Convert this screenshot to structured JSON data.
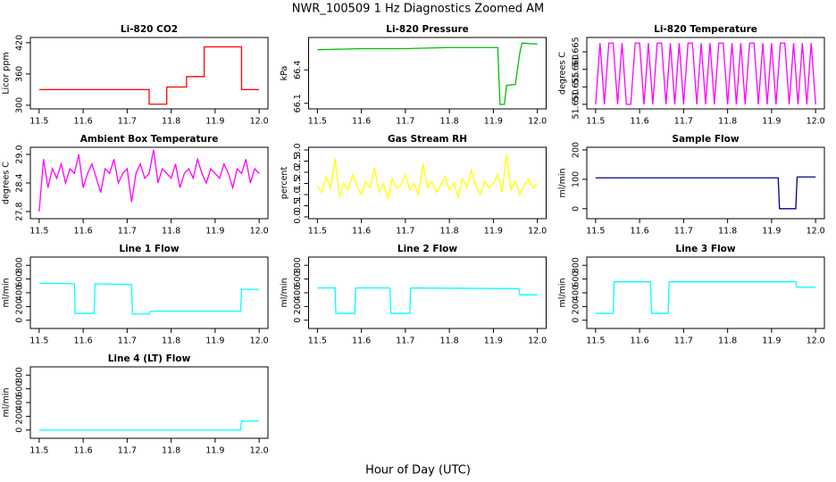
{
  "title": "NWR_100509  1 Hz Diagnostics Zoomed AM",
  "xlabel": "Hour of Day (UTC)",
  "chart_data": [
    {
      "type": "line",
      "title": "Li-820 CO2",
      "ylabel": "Licor ppm",
      "color": "#ff0000",
      "x": [
        11.5,
        11.75,
        11.75,
        11.79,
        11.79,
        11.835,
        11.835,
        11.875,
        11.875,
        11.96,
        11.96,
        12.0
      ],
      "values": [
        330,
        330,
        302,
        302,
        335,
        335,
        355,
        355,
        412,
        412,
        330,
        330
      ],
      "xlim": [
        11.48,
        12.02
      ],
      "xticks": [
        11.5,
        11.6,
        11.7,
        11.8,
        11.9,
        {
          "value": 12,
          "label": "12.0"
        }
      ],
      "ylim": [
        293,
        430
      ],
      "yticks": [
        300,
        360,
        420
      ]
    },
    {
      "type": "line",
      "title": "Li-820 Pressure",
      "ylabel": "kPa",
      "color": "#00c000",
      "x": [
        11.5,
        11.6,
        11.7,
        11.8,
        11.91,
        11.915,
        11.925,
        11.93,
        11.95,
        11.96,
        11.965,
        12.0
      ],
      "values": [
        66.58,
        66.59,
        66.59,
        66.6,
        66.6,
        66.09,
        66.09,
        66.26,
        66.27,
        66.55,
        66.64,
        66.63
      ],
      "xlim": [
        11.48,
        12.02
      ],
      "xticks": [
        11.5,
        11.6,
        11.7,
        11.8,
        11.9,
        {
          "value": 12,
          "label": "12.0"
        }
      ],
      "ylim": [
        66.05,
        66.69
      ],
      "yticks": [
        66.1,
        66.4
      ]
    },
    {
      "type": "line",
      "title": "Li-820 Temperature",
      "ylabel": "degrees C",
      "color": "#ff00ff",
      "x": [
        11.5,
        11.51,
        11.52,
        11.53,
        11.54,
        11.55,
        11.56,
        11.57,
        11.58,
        11.59,
        11.6,
        11.61,
        11.62,
        11.63,
        11.64,
        11.65,
        11.66,
        11.67,
        11.68,
        11.69,
        11.7,
        11.71,
        11.72,
        11.73,
        11.74,
        11.75,
        11.76,
        11.77,
        11.78,
        11.79,
        11.8,
        11.81,
        11.82,
        11.83,
        11.84,
        11.85,
        11.86,
        11.87,
        11.88,
        11.89,
        11.9,
        11.91,
        11.92,
        11.93,
        11.94,
        11.95,
        11.96,
        11.97,
        11.98,
        11.99,
        12.0
      ],
      "values": [
        51.65,
        51.6675,
        51.65,
        51.6675,
        51.6675,
        51.65,
        51.6675,
        51.65,
        51.65,
        51.6675,
        51.6675,
        51.65,
        51.6675,
        51.65,
        51.6675,
        51.6675,
        51.65,
        51.6675,
        51.65,
        51.6675,
        51.65,
        51.6675,
        51.6675,
        51.65,
        51.6675,
        51.65,
        51.6675,
        51.65,
        51.6675,
        51.6675,
        51.65,
        51.6675,
        51.65,
        51.6675,
        51.65,
        51.6675,
        51.6675,
        51.65,
        51.6675,
        51.65,
        51.6675,
        51.65,
        51.6675,
        51.6675,
        51.65,
        51.6675,
        51.65,
        51.6675,
        51.65,
        51.6675,
        51.65
      ],
      "xlim": [
        11.48,
        12.02
      ],
      "xticks": [
        11.5,
        11.6,
        11.7,
        11.8,
        11.9,
        {
          "value": 12,
          "label": "12.0"
        }
      ],
      "ylim": [
        51.6487,
        51.6691
      ],
      "yticks": [
        {
          "value": 51.65,
          "label": "51.650"
        },
        51.655,
        {
          "value": 51.66,
          "label": "51.660"
        },
        51.665
      ]
    },
    {
      "type": "line",
      "title": "Ambient Box Temperature",
      "ylabel": "degrees C",
      "color": "#ff00ff",
      "x": [
        11.5,
        11.51,
        11.52,
        11.53,
        11.54,
        11.55,
        11.56,
        11.57,
        11.58,
        11.59,
        11.6,
        11.61,
        11.62,
        11.63,
        11.64,
        11.65,
        11.66,
        11.67,
        11.68,
        11.69,
        11.7,
        11.71,
        11.72,
        11.73,
        11.74,
        11.75,
        11.76,
        11.77,
        11.78,
        11.79,
        11.8,
        11.81,
        11.82,
        11.83,
        11.84,
        11.85,
        11.86,
        11.87,
        11.88,
        11.89,
        11.9,
        11.91,
        11.92,
        11.93,
        11.94,
        11.95,
        11.96,
        11.97,
        11.98,
        11.99,
        12.0
      ],
      "values": [
        27.8,
        28.9,
        28.3,
        28.7,
        28.5,
        28.8,
        28.4,
        28.7,
        28.6,
        29.0,
        28.3,
        28.6,
        28.8,
        28.5,
        28.2,
        28.7,
        28.6,
        28.9,
        28.4,
        28.6,
        28.7,
        28.0,
        28.6,
        28.8,
        28.5,
        28.6,
        29.1,
        28.4,
        28.7,
        28.6,
        28.5,
        28.8,
        28.3,
        28.6,
        28.7,
        28.5,
        28.9,
        28.6,
        28.4,
        28.7,
        28.6,
        28.5,
        28.8,
        28.6,
        28.3,
        28.7,
        28.6,
        28.9,
        28.4,
        28.7,
        28.6
      ],
      "xlim": [
        11.48,
        12.02
      ],
      "xticks": [
        11.5,
        11.6,
        11.7,
        11.8,
        11.9,
        {
          "value": 12,
          "label": "12.0"
        }
      ],
      "ylim": [
        27.65,
        29.15
      ],
      "yticks": [
        27.8,
        28.4,
        {
          "value": 29,
          "label": "29.0"
        }
      ]
    },
    {
      "type": "line",
      "title": "Gas Stream RH",
      "ylabel": "percent",
      "color": "#ffff00",
      "x": [
        11.5,
        11.51,
        11.52,
        11.53,
        11.54,
        11.55,
        11.56,
        11.57,
        11.58,
        11.59,
        11.6,
        11.61,
        11.62,
        11.63,
        11.64,
        11.65,
        11.66,
        11.67,
        11.68,
        11.69,
        11.7,
        11.71,
        11.72,
        11.73,
        11.74,
        11.75,
        11.76,
        11.77,
        11.78,
        11.79,
        11.8,
        11.81,
        11.82,
        11.83,
        11.84,
        11.85,
        11.86,
        11.87,
        11.88,
        11.89,
        11.9,
        11.91,
        11.92,
        11.93,
        11.94,
        11.95,
        11.96,
        11.97,
        11.98,
        11.99,
        12.0
      ],
      "values": [
        1.4,
        1.1,
        1.8,
        1.3,
        2.6,
        0.9,
        1.5,
        1.2,
        1.9,
        1.4,
        1.0,
        1.6,
        1.3,
        2.2,
        1.1,
        1.5,
        0.8,
        1.7,
        1.3,
        1.4,
        1.9,
        1.2,
        1.5,
        1.0,
        2.4,
        1.3,
        1.6,
        1.1,
        1.4,
        1.8,
        1.2,
        1.5,
        0.9,
        1.7,
        1.3,
        2.1,
        1.4,
        1.0,
        1.6,
        1.3,
        1.5,
        1.9,
        1.1,
        2.8,
        1.2,
        1.6,
        1.0,
        1.4,
        1.7,
        1.3,
        1.5
      ],
      "xlim": [
        11.48,
        12.02
      ],
      "xticks": [
        11.5,
        11.6,
        11.7,
        11.8,
        11.9,
        {
          "value": 12,
          "label": "12.0"
        }
      ],
      "ylim": [
        -0.08,
        3.12
      ],
      "yticks": [
        {
          "value": 0,
          "label": "0.0"
        },
        0.5,
        {
          "value": 1,
          "label": "1.0"
        },
        1.5,
        {
          "value": 2,
          "label": "2.0"
        },
        2.5,
        {
          "value": 3,
          "label": "3.0"
        }
      ]
    },
    {
      "type": "line",
      "title": "Sample Flow",
      "ylabel": "ml/min",
      "color": "#00008b",
      "x": [
        11.5,
        11.915,
        11.918,
        11.955,
        11.958,
        12.0
      ],
      "values": [
        105,
        105,
        0,
        0,
        108,
        108
      ],
      "xlim": [
        11.48,
        12.02
      ],
      "xticks": [
        11.5,
        11.6,
        11.7,
        11.8,
        11.9,
        {
          "value": 12,
          "label": "12.0"
        }
      ],
      "ylim": [
        -34,
        209
      ],
      "yticks": [
        0,
        100,
        200
      ]
    },
    {
      "type": "line",
      "title": "Line 1 Flow",
      "ylabel": "ml/min",
      "color": "#00ffff",
      "x": [
        11.5,
        11.58,
        11.582,
        11.625,
        11.627,
        11.71,
        11.712,
        11.75,
        11.752,
        11.958,
        11.96,
        12.0
      ],
      "values": [
        540,
        530,
        100,
        100,
        530,
        520,
        90,
        90,
        130,
        130,
        450,
        450
      ],
      "xlim": [
        11.48,
        12.02
      ],
      "xticks": [
        11.5,
        11.6,
        11.7,
        11.8,
        11.9,
        {
          "value": 12,
          "label": "12.0"
        }
      ],
      "ylim": [
        -120,
        920
      ],
      "yticks": [
        0,
        200,
        400,
        600,
        800
      ]
    },
    {
      "type": "line",
      "title": "Line 2 Flow",
      "ylabel": "ml/min",
      "color": "#00ffff",
      "x": [
        11.5,
        11.54,
        11.542,
        11.585,
        11.587,
        11.665,
        11.667,
        11.71,
        11.712,
        11.958,
        11.96,
        12.0
      ],
      "values": [
        470,
        470,
        100,
        100,
        470,
        470,
        100,
        100,
        470,
        460,
        370,
        370
      ],
      "xlim": [
        11.48,
        12.02
      ],
      "xticks": [
        11.5,
        11.6,
        11.7,
        11.8,
        11.9,
        {
          "value": 12,
          "label": "12.0"
        }
      ],
      "ylim": [
        -120,
        920
      ],
      "yticks": [
        0,
        200,
        400,
        600,
        800
      ]
    },
    {
      "type": "line",
      "title": "Line 3 Flow",
      "ylabel": "ml/min",
      "color": "#00ffff",
      "x": [
        11.5,
        11.54,
        11.542,
        11.625,
        11.627,
        11.665,
        11.667,
        11.955,
        11.957,
        12.0
      ],
      "values": [
        100,
        100,
        560,
        560,
        100,
        100,
        560,
        560,
        480,
        480
      ],
      "xlim": [
        11.48,
        12.02
      ],
      "xticks": [
        11.5,
        11.6,
        11.7,
        11.8,
        11.9,
        {
          "value": 12,
          "label": "12.0"
        }
      ],
      "ylim": [
        -120,
        920
      ],
      "yticks": [
        0,
        200,
        400,
        600,
        800
      ]
    },
    {
      "type": "line",
      "title": "Line 4 (LT) Flow",
      "ylabel": "ml/min",
      "color": "#00ffff",
      "x": [
        11.5,
        11.958,
        11.96,
        12.0
      ],
      "values": [
        0,
        0,
        130,
        130
      ],
      "xlim": [
        11.48,
        12.02
      ],
      "xticks": [
        11.5,
        11.6,
        11.7,
        11.8,
        11.9,
        {
          "value": 12,
          "label": "12.0"
        }
      ],
      "ylim": [
        -120,
        920
      ],
      "yticks": [
        0,
        200,
        400,
        600,
        800
      ]
    }
  ]
}
